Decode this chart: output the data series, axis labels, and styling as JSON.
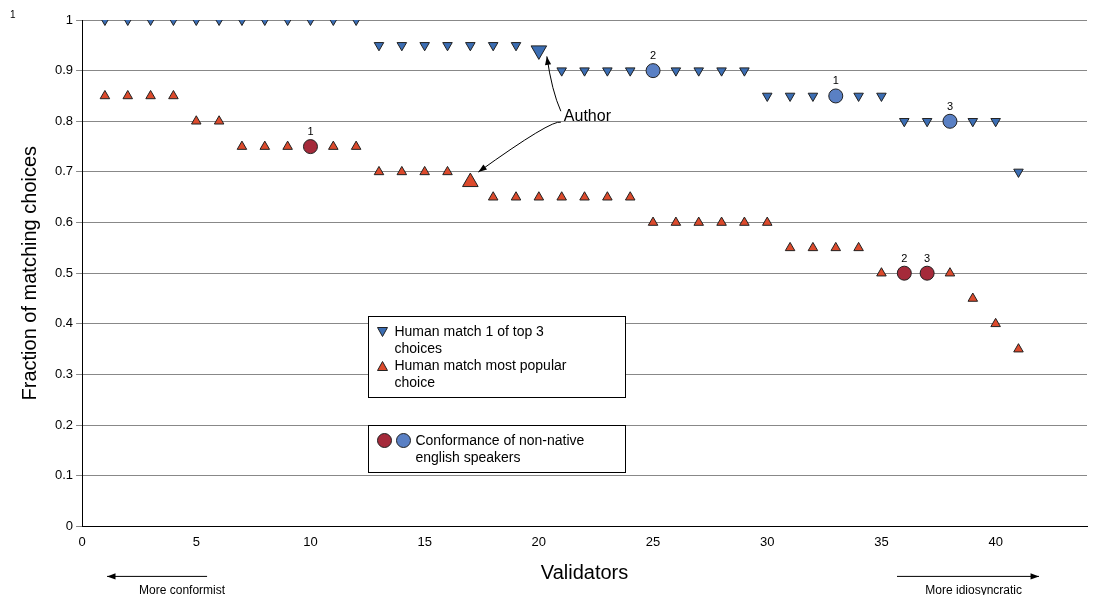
{
  "chart_data": {
    "type": "scatter",
    "xlabel": "Validators",
    "ylabel": "Fraction of matching choices",
    "xlim": [
      0,
      44
    ],
    "xticks": [
      0,
      5,
      10,
      15,
      20,
      25,
      30,
      35,
      40
    ],
    "ylim": [
      0,
      1
    ],
    "yticks": [
      0,
      0.1,
      0.2,
      0.3,
      0.4,
      0.5,
      0.6,
      0.7,
      0.8,
      0.9,
      1
    ],
    "grid": "y",
    "legend": "center",
    "annotations": [
      "1",
      "Author",
      "More conformist",
      "More idiosyncratic",
      {
        "text": "1",
        "x": 10,
        "y": 0.75
      },
      {
        "text": "2",
        "x": 36,
        "y": 0.5
      },
      {
        "text": "3",
        "x": 37,
        "y": 0.5
      },
      {
        "text": "2",
        "x": 25,
        "y": 0.9
      },
      {
        "text": "1",
        "x": 33,
        "y": 0.85
      },
      {
        "text": "3",
        "x": 38,
        "y": 0.8
      }
    ],
    "series": [
      {
        "name": "Human match 1 of top 3 choices",
        "color": "#3b6db3",
        "marker": "triangle_down",
        "x": [
          1,
          2,
          3,
          4,
          5,
          6,
          7,
          8,
          9,
          10,
          11,
          12,
          13,
          14,
          15,
          16,
          17,
          18,
          19,
          21,
          22,
          23,
          24,
          26,
          27,
          28,
          29,
          30,
          31,
          32,
          34,
          35,
          36,
          37,
          39,
          40,
          41
        ],
        "values": [
          1,
          1,
          1,
          1,
          1,
          1,
          1,
          1,
          1,
          1,
          1,
          1,
          0.95,
          0.95,
          0.95,
          0.95,
          0.95,
          0.95,
          0.95,
          0.9,
          0.9,
          0.9,
          0.9,
          0.9,
          0.9,
          0.9,
          0.9,
          0.85,
          0.85,
          0.85,
          0.85,
          0.85,
          0.8,
          0.8,
          0.8,
          0.8,
          0.7
        ]
      },
      {
        "name": "Human match most popular choice",
        "color": "#dc4a2c",
        "marker": "triangle",
        "x": [
          1,
          2,
          3,
          4,
          5,
          6,
          7,
          8,
          9,
          11,
          12,
          13,
          14,
          15,
          16,
          18,
          19,
          20,
          21,
          22,
          23,
          24,
          25,
          26,
          27,
          28,
          29,
          30,
          31,
          32,
          33,
          34,
          35,
          38,
          39,
          40,
          41
        ],
        "values": [
          0.85,
          0.85,
          0.85,
          0.85,
          0.8,
          0.8,
          0.75,
          0.75,
          0.75,
          0.75,
          0.75,
          0.7,
          0.7,
          0.7,
          0.7,
          0.65,
          0.65,
          0.65,
          0.65,
          0.65,
          0.65,
          0.65,
          0.6,
          0.6,
          0.6,
          0.6,
          0.6,
          0.6,
          0.55,
          0.55,
          0.55,
          0.55,
          0.5,
          0.5,
          0.45,
          0.4,
          0.35
        ]
      },
      {
        "color": "#a52a3a",
        "marker": "circle",
        "x": [
          10,
          36,
          37
        ],
        "values": [
          0.75,
          0.5,
          0.5
        ]
      },
      {
        "name": "Conformance of non-native english speakers",
        "color": "#5a80c4",
        "marker": "circle",
        "x": [
          25,
          33,
          38
        ],
        "values": [
          0.9,
          0.85,
          0.8
        ]
      },
      {
        "color": "#3b6db3",
        "marker": "triangle_down",
        "x": [
          20
        ],
        "values": [
          0.94
        ]
      },
      {
        "color": "#dc4a2c",
        "marker": "triangle",
        "x": [
          17
        ],
        "values": [
          0.68
        ]
      }
    ]
  }
}
